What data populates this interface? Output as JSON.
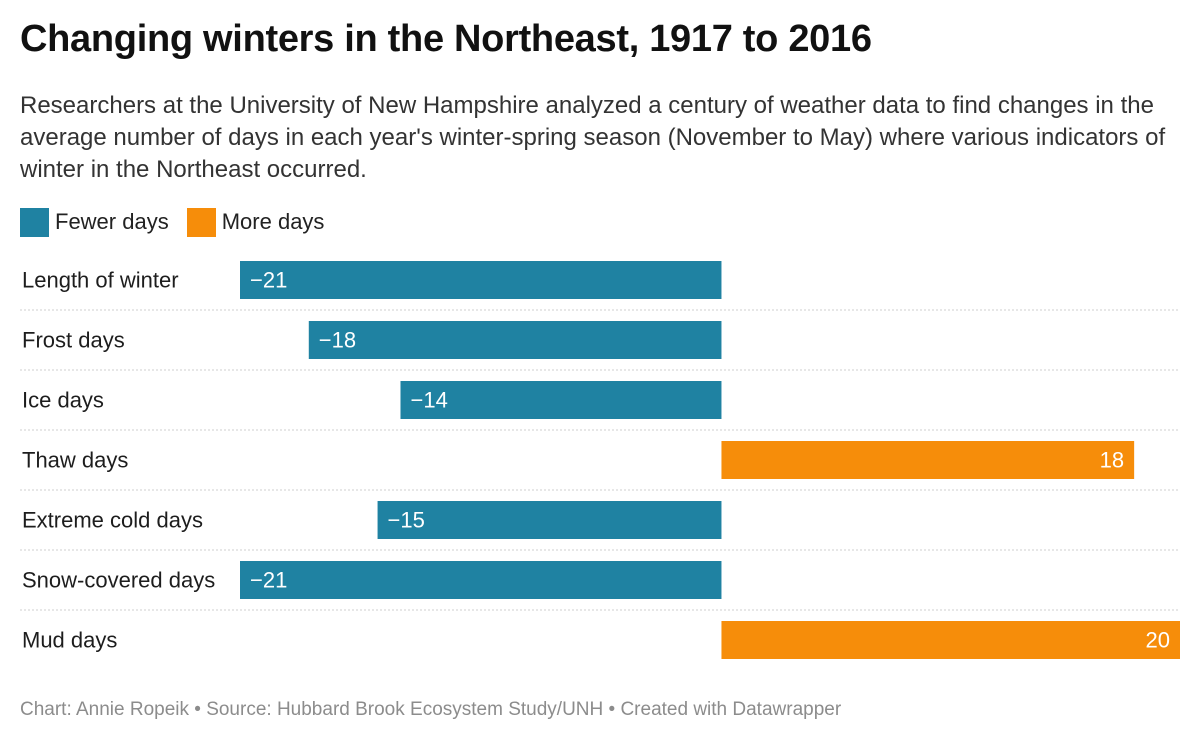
{
  "title": "Changing winters in the Northeast, 1917 to 2016",
  "subtitle": "Researchers at the University of New Hampshire analyzed a century of weather data to find changes in the average number of days in each year's winter-spring season (November to May) where various indicators of winter in the Northeast occurred.",
  "legend": [
    {
      "label": "Fewer days",
      "color": "#1f82a2"
    },
    {
      "label": "More days",
      "color": "#f68d0a"
    }
  ],
  "chart_data": {
    "type": "bar",
    "orientation": "horizontal",
    "categories": [
      "Length of winter",
      "Frost days",
      "Ice days",
      "Thaw days",
      "Extreme cold days",
      "Snow-covered days",
      "Mud days"
    ],
    "values": [
      -21,
      -18,
      -14,
      18,
      -15,
      -21,
      20
    ],
    "value_labels": [
      "−21",
      "−18",
      "−14",
      "18",
      "−15",
      "−21",
      "20"
    ],
    "xlim": [
      -21,
      20
    ],
    "colors": {
      "negative": "#1f82a2",
      "positive": "#f68d0a"
    },
    "grid": false,
    "legend_position": "top-left"
  },
  "footer": "Chart: Annie Ropeik • Source: Hubbard Brook Ecosystem Study/UNH • Created with Datawrapper"
}
